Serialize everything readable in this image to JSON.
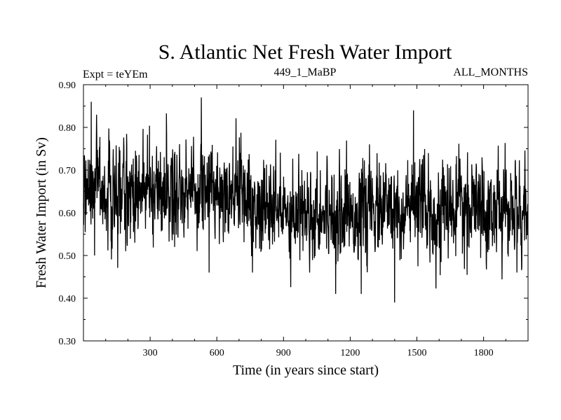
{
  "chart_data": {
    "type": "line",
    "title": "S. Atlantic Net Fresh Water Import",
    "expt_label": "Expt = teYEm",
    "run_label": "449_1_MaBP",
    "period_label": "ALL_MONTHS",
    "xlabel": "Time (in years since start)",
    "ylabel": "Fresh Water Import (in Sv)",
    "xlim": [
      0,
      2000
    ],
    "ylim": [
      0.3,
      0.9
    ],
    "xticks": [
      300,
      600,
      900,
      1200,
      1500,
      1800
    ],
    "xtick_labels": [
      "300",
      "600",
      "900",
      "1200",
      "1500",
      "1800"
    ],
    "yticks": [
      0.3,
      0.4,
      0.5,
      0.6,
      0.7,
      0.8,
      0.9
    ],
    "ytick_labels": [
      "0.30",
      "0.40",
      "0.50",
      "0.60",
      "0.70",
      "0.80",
      "0.90"
    ],
    "series": [
      {
        "name": "S. Atlantic Net Fresh Water Import",
        "color": "#000000",
        "n_points": 2000,
        "segments": [
          {
            "x_start": 0,
            "x_end": 750,
            "mean": 0.655,
            "std": 0.055
          },
          {
            "x_start": 750,
            "x_end": 2000,
            "mean": 0.605,
            "std": 0.055
          }
        ],
        "extremes": [
          {
            "x": 35,
            "y": 0.86
          },
          {
            "x": 50,
            "y": 0.5
          },
          {
            "x": 190,
            "y": 0.51
          },
          {
            "x": 410,
            "y": 0.52
          },
          {
            "x": 530,
            "y": 0.87
          },
          {
            "x": 565,
            "y": 0.46
          },
          {
            "x": 760,
            "y": 0.46
          },
          {
            "x": 1000,
            "y": 0.44
          },
          {
            "x": 1135,
            "y": 0.41
          },
          {
            "x": 1250,
            "y": 0.41
          },
          {
            "x": 1400,
            "y": 0.39
          },
          {
            "x": 1485,
            "y": 0.84
          },
          {
            "x": 1950,
            "y": 0.46
          }
        ]
      }
    ]
  }
}
